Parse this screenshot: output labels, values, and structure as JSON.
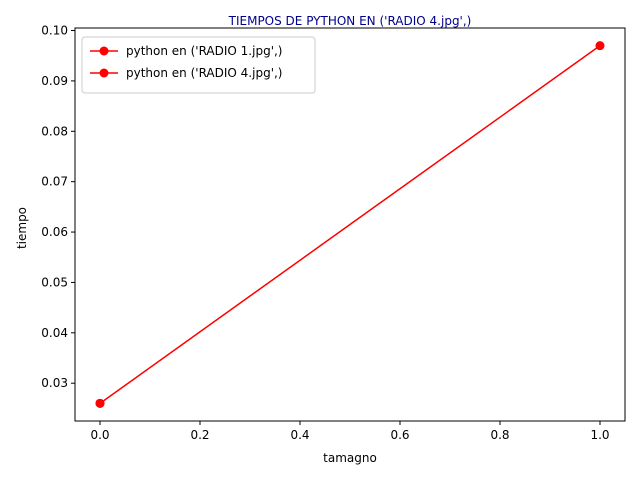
{
  "chart_data": {
    "type": "line",
    "title": "TIEMPOS DE PYTHON EN ('RADIO 4.jpg',)",
    "title_color": "#00008b",
    "xlabel": "tamagno",
    "ylabel": "tiempo",
    "xlim": [
      -0.05,
      1.05
    ],
    "ylim": [
      0.0225,
      0.1005
    ],
    "xticks": [
      0.0,
      0.2,
      0.4,
      0.6,
      0.8,
      1.0
    ],
    "xtick_labels": [
      "0.0",
      "0.2",
      "0.4",
      "0.6",
      "0.8",
      "1.0"
    ],
    "yticks": [
      0.03,
      0.04,
      0.05,
      0.06,
      0.07,
      0.08,
      0.09,
      0.1
    ],
    "ytick_labels": [
      "0.03",
      "0.04",
      "0.05",
      "0.06",
      "0.07",
      "0.08",
      "0.09",
      "0.10"
    ],
    "grid": false,
    "legend_position": "top-left",
    "series": [
      {
        "name": "python en ('RADIO 1.jpg',)",
        "color": "#ff0000",
        "marker": "circle",
        "x": [
          0.0
        ],
        "y": [
          0.026
        ]
      },
      {
        "name": "python en ('RADIO 4.jpg',)",
        "color": "#ff0000",
        "marker": "circle",
        "x": [
          0.0,
          1.0
        ],
        "y": [
          0.026,
          0.097
        ]
      }
    ]
  }
}
